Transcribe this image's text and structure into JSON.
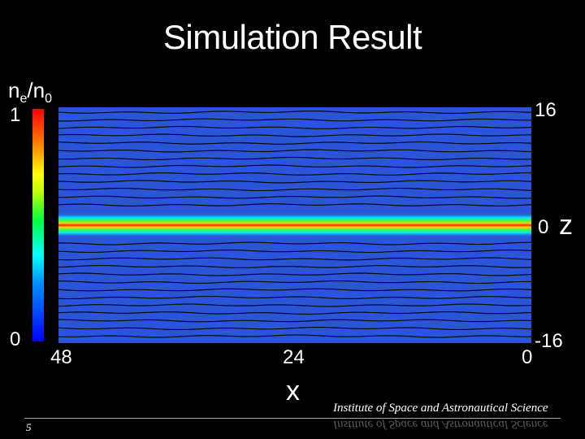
{
  "title": "Simulation Result",
  "colorbar": {
    "label_main": "n",
    "label_sub1": "e",
    "label_mid": "/n",
    "label_sub2": "0",
    "max_label": "1",
    "min_label": "0"
  },
  "z_axis": {
    "label": "z",
    "ticks": [
      "16",
      "0",
      "-16"
    ]
  },
  "x_axis": {
    "label": "x",
    "ticks": [
      "48",
      "24",
      "0"
    ]
  },
  "footer": {
    "page_number": "5",
    "institute": "Institute of Space and Astronautical Science"
  },
  "colors": {
    "background": "#000000",
    "plot_fill": "#2b55d8",
    "contour_line": "#000000",
    "band_core": "#ff2000"
  }
}
